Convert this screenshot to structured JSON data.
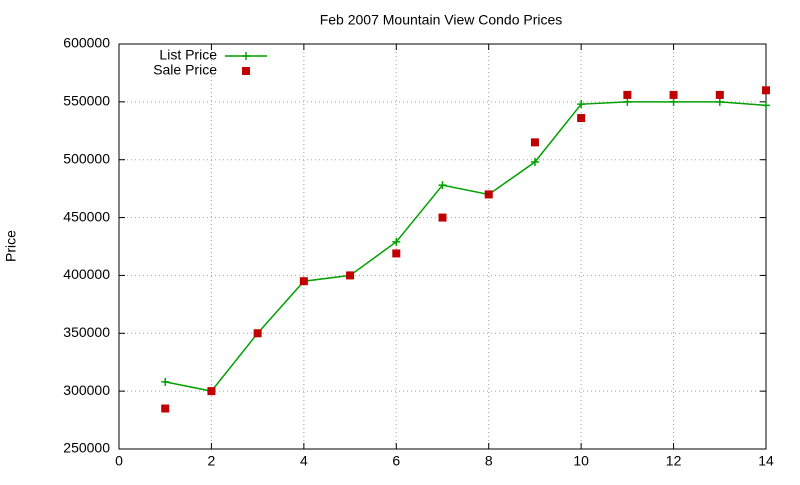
{
  "chart_data": {
    "type": "line",
    "title": "Feb 2007 Mountain View Condo Prices",
    "y_label": "Price",
    "x": [
      1,
      2,
      3,
      4,
      5,
      6,
      7,
      8,
      9,
      10,
      11,
      12,
      13,
      14
    ],
    "series": [
      {
        "name": "List Price",
        "color": "#00a000",
        "style": "linespoints",
        "values": [
          308000,
          300000,
          350000,
          395000,
          400000,
          429000,
          478000,
          470000,
          498000,
          548000,
          550000,
          550000,
          550000,
          547000
        ]
      },
      {
        "name": "Sale Price",
        "color": "#c00000",
        "style": "points",
        "values": [
          285000,
          300000,
          350000,
          395000,
          400000,
          419000,
          450000,
          470000,
          515000,
          536000,
          556000,
          556000,
          556000,
          560000
        ]
      }
    ],
    "xlim": [
      0,
      14
    ],
    "xticks": [
      0,
      2,
      4,
      6,
      8,
      10,
      12,
      14
    ],
    "ylim": [
      250000,
      600000
    ],
    "yticks": [
      250000,
      300000,
      350000,
      400000,
      450000,
      500000,
      550000,
      600000
    ],
    "grid": true,
    "legend": "top-left"
  }
}
